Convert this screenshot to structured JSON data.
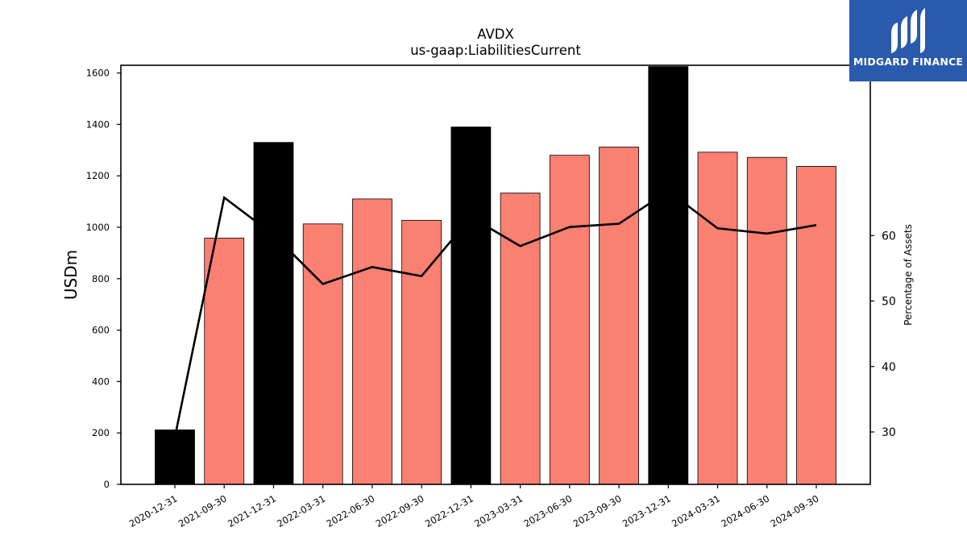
{
  "chart_data": {
    "type": "bar",
    "title": "AVDX",
    "subtitle": "us-gaap:LiabilitiesCurrent",
    "ylabel": "USDm",
    "y2label": "Percentage of Assets",
    "ylim": [
      0,
      1630
    ],
    "y2lim": [
      22,
      86
    ],
    "yticks": [
      0,
      200,
      400,
      600,
      800,
      1000,
      1200,
      1400,
      1600
    ],
    "y2ticks": [
      30,
      40,
      50,
      60
    ],
    "categories": [
      "2020-12-31",
      "2021-09-30",
      "2021-12-31",
      "2022-03-31",
      "2022-06-30",
      "2022-09-30",
      "2022-12-31",
      "2023-03-31",
      "2023-06-30",
      "2023-09-30",
      "2023-12-31",
      "2024-03-31",
      "2024-06-30",
      "2024-09-30"
    ],
    "series": [
      {
        "type": "bar",
        "values": [
          212,
          958,
          1330,
          1013,
          1110,
          1027,
          1390,
          1133,
          1280,
          1312,
          1625,
          1292,
          1272,
          1237
        ],
        "colors": [
          "#000000",
          "#fa8072",
          "#000000",
          "#fa8072",
          "#fa8072",
          "#fa8072",
          "#000000",
          "#fa8072",
          "#fa8072",
          "#fa8072",
          "#000000",
          "#fa8072",
          "#fa8072",
          "#fa8072"
        ]
      },
      {
        "type": "line",
        "axis": "right",
        "color": "#000000",
        "values": [
          29.2,
          65.8,
          60.1,
          52.6,
          55.2,
          53.8,
          62.8,
          58.4,
          61.3,
          61.8,
          66.8,
          61.1,
          60.3,
          61.6
        ]
      }
    ],
    "grid": false,
    "legend": "none"
  },
  "logo": {
    "text": "MIDGARD FINANCE",
    "bg_color": "#2a5aab"
  }
}
